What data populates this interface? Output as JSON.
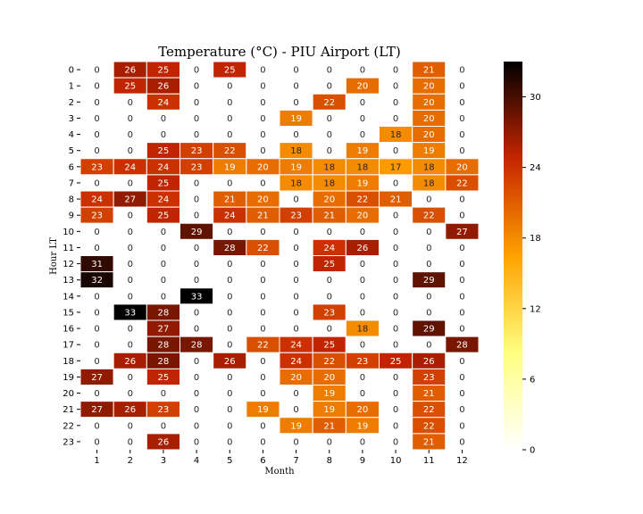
{
  "chart_data": {
    "type": "heatmap",
    "title": "Temperature (°C) - PIU Airport (LT)",
    "xlabel": "Month",
    "ylabel": "Hour LT",
    "x_ticks": [
      "1",
      "2",
      "3",
      "4",
      "5",
      "6",
      "7",
      "8",
      "9",
      "10",
      "11",
      "12"
    ],
    "y_ticks": [
      "0",
      "1",
      "2",
      "3",
      "4",
      "5",
      "6",
      "7",
      "8",
      "9",
      "10",
      "11",
      "12",
      "13",
      "14",
      "15",
      "16",
      "17",
      "18",
      "19",
      "20",
      "21",
      "22",
      "23"
    ],
    "values": [
      [
        0,
        26,
        25,
        0,
        25,
        0,
        0,
        0,
        0,
        0,
        21,
        0
      ],
      [
        0,
        25,
        26,
        0,
        0,
        0,
        0,
        0,
        20,
        0,
        20,
        0
      ],
      [
        0,
        0,
        24,
        0,
        0,
        0,
        0,
        22,
        0,
        0,
        20,
        0
      ],
      [
        0,
        0,
        0,
        0,
        0,
        0,
        19,
        0,
        0,
        0,
        20,
        0
      ],
      [
        0,
        0,
        0,
        0,
        0,
        0,
        0,
        0,
        0,
        18,
        20,
        0
      ],
      [
        0,
        0,
        25,
        23,
        22,
        0,
        18,
        0,
        19,
        0,
        19,
        0
      ],
      [
        23,
        24,
        24,
        23,
        19,
        20,
        19,
        18,
        18,
        17,
        18,
        20
      ],
      [
        0,
        0,
        25,
        0,
        0,
        0,
        18,
        18,
        19,
        0,
        18,
        22
      ],
      [
        24,
        27,
        24,
        0,
        21,
        20,
        0,
        20,
        22,
        21,
        0,
        0
      ],
      [
        23,
        0,
        25,
        0,
        24,
        21,
        23,
        21,
        20,
        0,
        22,
        0
      ],
      [
        0,
        0,
        0,
        29,
        0,
        0,
        0,
        0,
        0,
        0,
        0,
        27
      ],
      [
        0,
        0,
        0,
        0,
        28,
        22,
        0,
        24,
        26,
        0,
        0,
        0
      ],
      [
        31,
        0,
        0,
        0,
        0,
        0,
        0,
        25,
        0,
        0,
        0,
        0
      ],
      [
        32,
        0,
        0,
        0,
        0,
        0,
        0,
        0,
        0,
        0,
        29,
        0
      ],
      [
        0,
        0,
        0,
        33,
        0,
        0,
        0,
        0,
        0,
        0,
        0,
        0
      ],
      [
        0,
        33,
        28,
        0,
        0,
        0,
        0,
        23,
        0,
        0,
        0,
        0
      ],
      [
        0,
        0,
        27,
        0,
        0,
        0,
        0,
        0,
        18,
        0,
        29,
        0
      ],
      [
        0,
        0,
        28,
        28,
        0,
        22,
        24,
        25,
        0,
        0,
        0,
        28
      ],
      [
        0,
        26,
        28,
        0,
        26,
        0,
        24,
        22,
        23,
        25,
        26,
        0
      ],
      [
        27,
        0,
        25,
        0,
        0,
        0,
        20,
        20,
        0,
        0,
        23,
        0
      ],
      [
        0,
        0,
        0,
        0,
        0,
        0,
        0,
        19,
        0,
        0,
        21,
        0
      ],
      [
        27,
        26,
        23,
        0,
        0,
        19,
        0,
        19,
        20,
        0,
        22,
        0
      ],
      [
        0,
        0,
        0,
        0,
        0,
        0,
        19,
        21,
        19,
        0,
        22,
        0
      ],
      [
        0,
        0,
        26,
        0,
        0,
        0,
        0,
        0,
        0,
        0,
        21,
        0
      ]
    ],
    "colormap": "afmhot_r",
    "vmin": 0,
    "vmax": 33,
    "colorbar_ticks": [
      0,
      6,
      12,
      18,
      24,
      30
    ],
    "annotated": true
  }
}
